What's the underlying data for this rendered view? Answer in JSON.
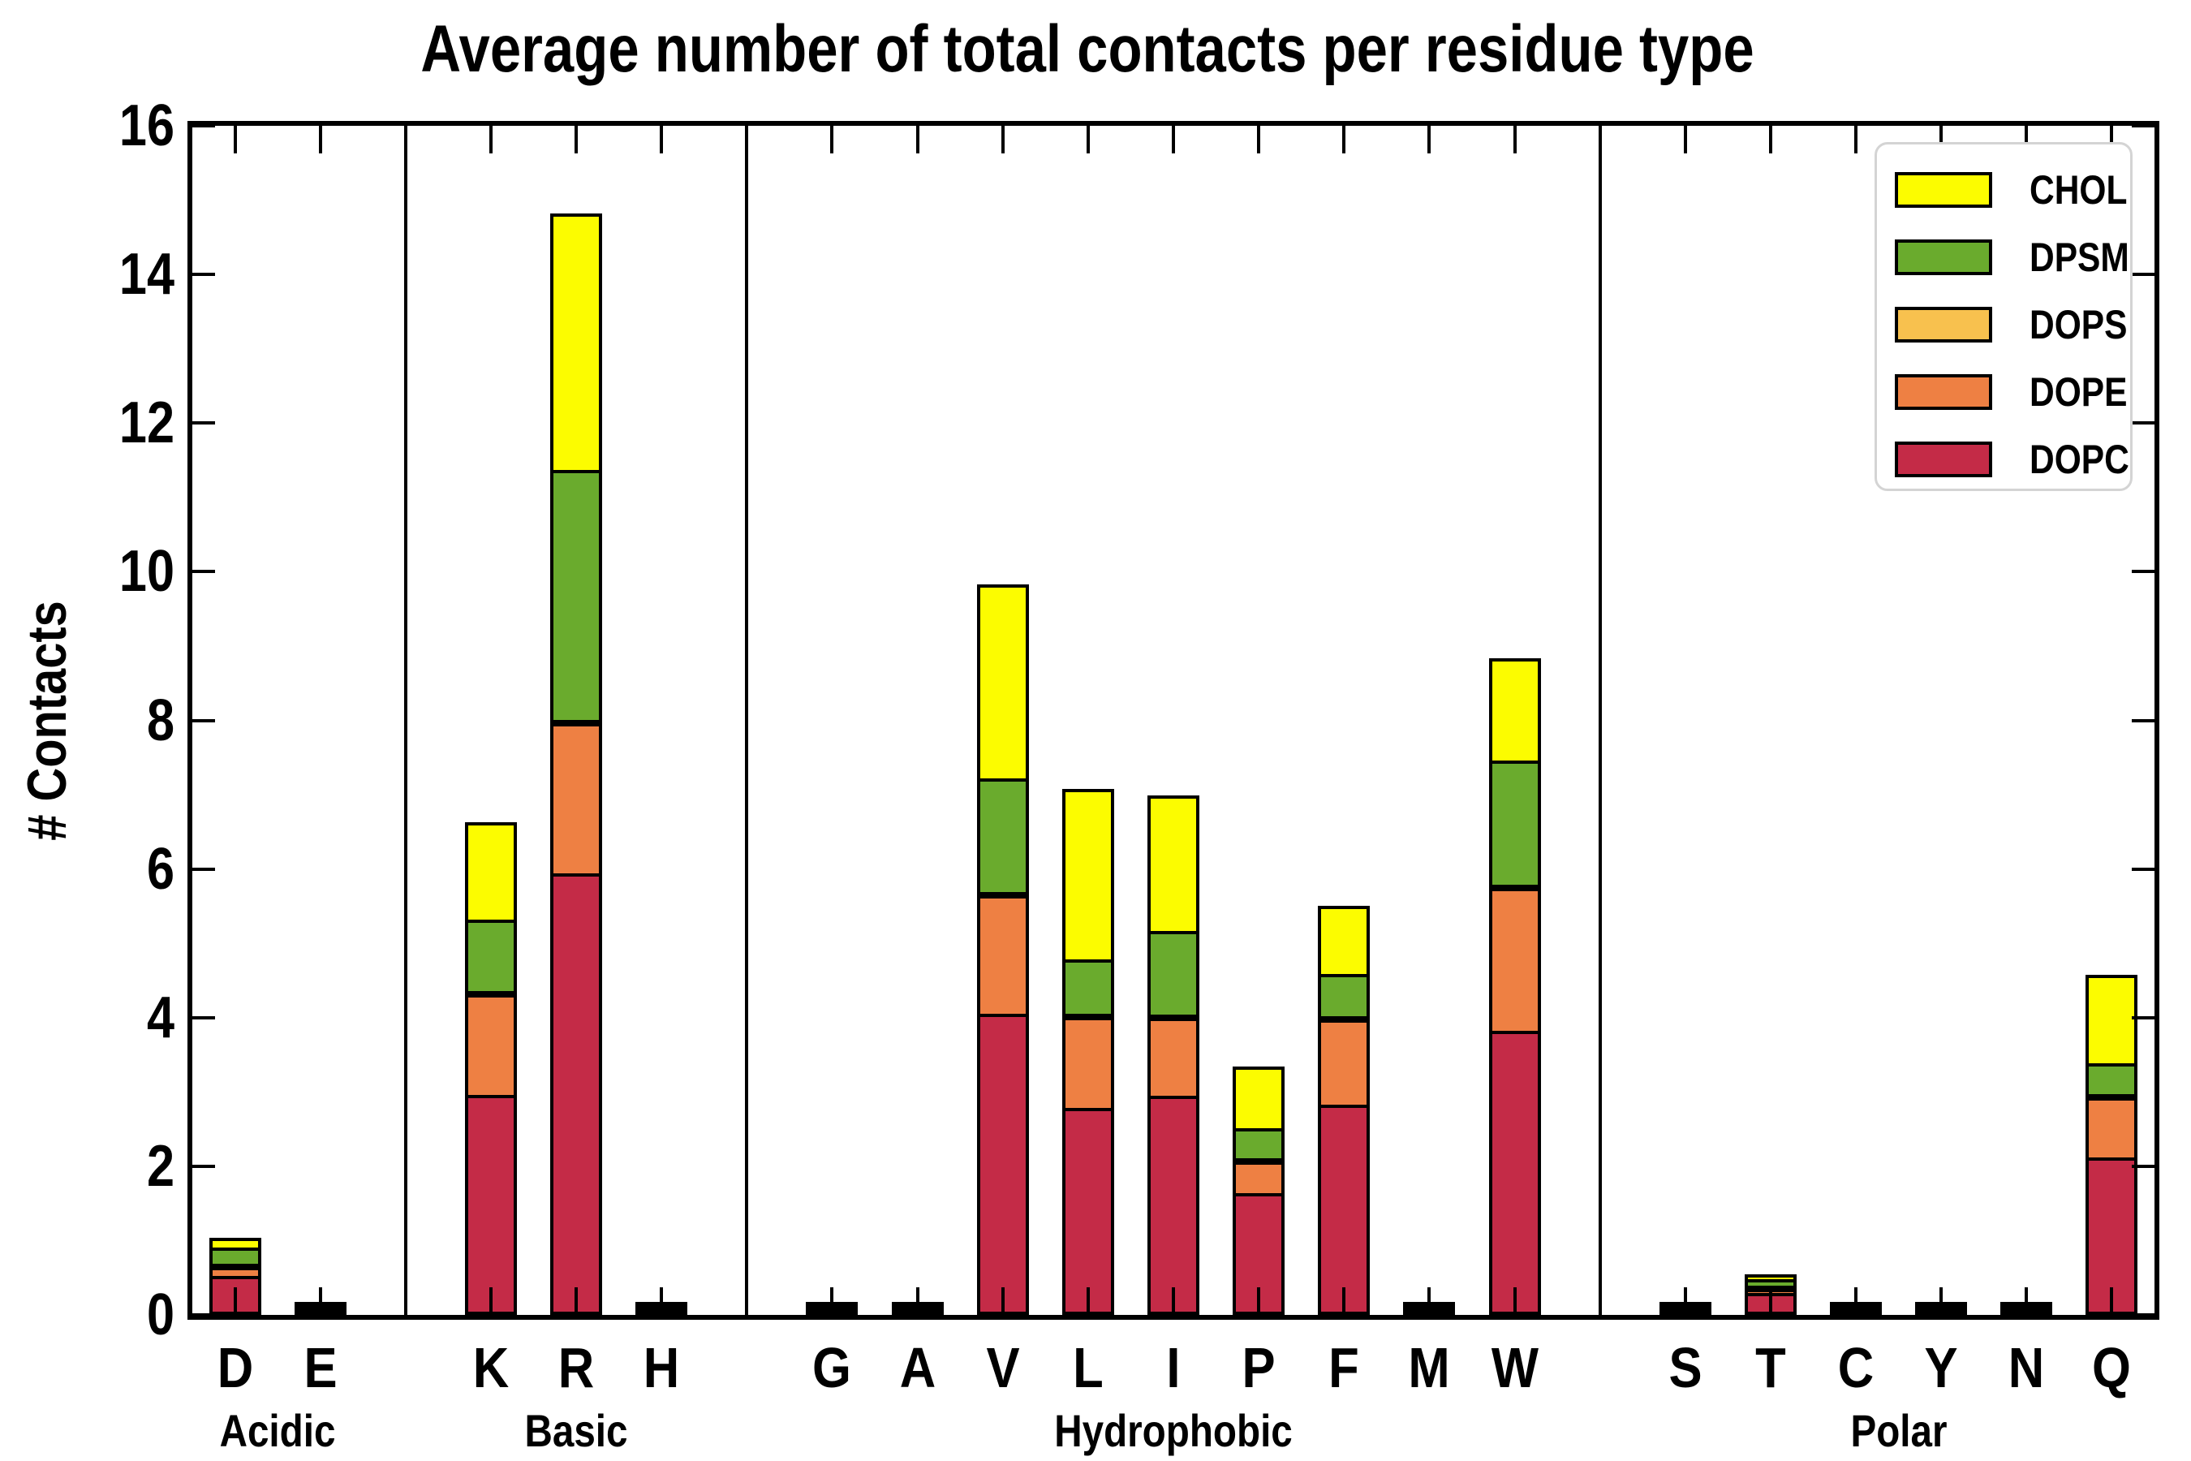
{
  "figure": {
    "title": "Average number of total contacts per residue type",
    "ylabel": "# Contacts"
  },
  "legend": {
    "entries": [
      {
        "label": "CHOL",
        "color": "#FCFC00"
      },
      {
        "label": "DPSM",
        "color": "#6AAB2D"
      },
      {
        "label": "DOPS",
        "color": "#F8C14E"
      },
      {
        "label": "DOPE",
        "color": "#EE8043"
      },
      {
        "label": "DOPC",
        "color": "#C42B47"
      }
    ]
  },
  "chart_data": {
    "type": "bar",
    "stacked": true,
    "title": "Average number of total contacts per residue type",
    "xlabel": "",
    "ylabel": "# Contacts",
    "ylim": [
      0,
      16
    ],
    "yticks": [
      0,
      2,
      4,
      6,
      8,
      10,
      12,
      14,
      16
    ],
    "grid": false,
    "legend_position": "upper right",
    "groups": [
      {
        "label": "Acidic",
        "categories": [
          "D",
          "E"
        ]
      },
      {
        "label": "Basic",
        "categories": [
          "K",
          "R",
          "H"
        ]
      },
      {
        "label": "Hydrophobic",
        "categories": [
          "G",
          "A",
          "V",
          "L",
          "I",
          "P",
          "F",
          "M",
          "W"
        ]
      },
      {
        "label": "Polar",
        "categories": [
          "S",
          "T",
          "C",
          "Y",
          "N",
          "Q"
        ]
      }
    ],
    "categories": [
      "D",
      "E",
      "K",
      "R",
      "H",
      "G",
      "A",
      "V",
      "L",
      "I",
      "P",
      "F",
      "M",
      "W",
      "S",
      "T",
      "C",
      "Y",
      "N",
      "Q"
    ],
    "series": [
      {
        "name": "DOPC",
        "color": "#C42B47",
        "values": [
          0.48,
          0.02,
          2.92,
          5.9,
          0.02,
          0.02,
          0.02,
          4.01,
          2.74,
          2.91,
          1.6,
          2.79,
          0.03,
          3.78,
          0.02,
          0.25,
          0.02,
          0.02,
          0.02,
          2.08
        ]
      },
      {
        "name": "DOPE",
        "color": "#EE8043",
        "values": [
          0.12,
          0.005,
          1.35,
          2.02,
          0.005,
          0.005,
          0.005,
          1.59,
          1.23,
          1.04,
          0.42,
          1.14,
          0.01,
          1.92,
          0.005,
          0.06,
          0.005,
          0.005,
          0.005,
          0.8
        ]
      },
      {
        "name": "DOPS",
        "color": "#F8C14E",
        "values": [
          0.01,
          0,
          0.02,
          0.02,
          0,
          0,
          0,
          0.01,
          0.01,
          0.01,
          0.01,
          0.01,
          0,
          0.01,
          0,
          0.02,
          0,
          0,
          0,
          0.01
        ]
      },
      {
        "name": "DPSM",
        "color": "#6AAB2D",
        "values": [
          0.22,
          0.005,
          0.96,
          3.36,
          0.005,
          0.005,
          0.005,
          1.53,
          0.73,
          1.13,
          0.4,
          0.57,
          0.01,
          1.67,
          0.005,
          0.08,
          0.005,
          0.005,
          0.005,
          0.42
        ]
      },
      {
        "name": "CHOL",
        "color": "#FCFC00",
        "values": [
          0.13,
          0,
          1.31,
          3.45,
          0,
          0,
          0,
          2.61,
          2.29,
          1.82,
          0.84,
          0.92,
          0,
          1.38,
          0,
          0.07,
          0,
          0,
          0,
          1.19
        ]
      }
    ]
  }
}
